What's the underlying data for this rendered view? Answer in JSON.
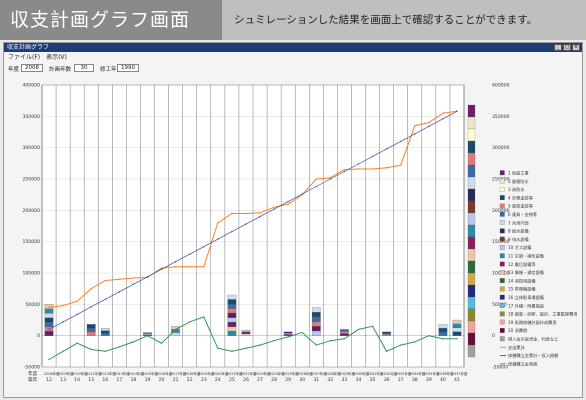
{
  "header": {
    "title": "収支計画グラフ画面",
    "caption": "シュミレーションした結果を画面上で確認することができます。"
  },
  "window": {
    "title": "収支計画グラフ",
    "menu": [
      "ファイル(F)",
      "表示(V)"
    ],
    "controls": [
      {
        "label": "年度",
        "value": "2008"
      },
      {
        "label": "計画年数",
        "value": "30"
      },
      {
        "label": "修工年",
        "value": "1990"
      }
    ]
  },
  "colors": {
    "header_dark": "#8a8a8a",
    "header_light": "#bfbfbf",
    "titlebar": "#1f3b78",
    "orange_line": "#ff7f27",
    "blue_line": "#3b4fa0",
    "green_line": "#2e9a55"
  },
  "chart_data": {
    "type": "bar",
    "ylim": [
      -50000,
      400000
    ],
    "yticks_left": [
      "400000",
      "350000",
      "300000",
      "250000",
      "200000",
      "150000",
      "100000",
      "50000",
      "0",
      "-50000"
    ],
    "yticks_right": [
      "400000",
      "350000",
      "300000",
      "250000",
      "200000",
      "150000",
      "100000",
      "50000",
      "0",
      "-50000"
    ],
    "years_label": "年度",
    "years": [
      "2008年度",
      "2009年度",
      "2010年度",
      "2011年度",
      "2012年度",
      "2013年度",
      "2014年度",
      "2015年度",
      "2016年度",
      "2017年度",
      "2018年度",
      "2019年度",
      "2020年度",
      "2021年度",
      "2022年度",
      "2023年度",
      "2024年度",
      "2025年度",
      "2026年度",
      "2027年度",
      "2028年度",
      "2029年度",
      "2030年度",
      "2031年度",
      "2032年度",
      "2033年度",
      "2034年度",
      "2035年度",
      "2036年度",
      "2037年度"
    ],
    "age_label": "築年",
    "ages": [
      "12",
      "13",
      "14",
      "15",
      "16",
      "17",
      "18",
      "19",
      "20",
      "21",
      "22",
      "23",
      "24",
      "25",
      "26",
      "27",
      "28",
      "29",
      "30",
      "31",
      "32",
      "33",
      "34",
      "35",
      "36",
      "37",
      "38",
      "39",
      "40",
      "41"
    ],
    "series": [
      {
        "name": "支出累計",
        "values": [
          45000,
          48000,
          55000,
          75000,
          88000,
          90000,
          92000,
          93000,
          108000,
          110000,
          110000,
          110000,
          180000,
          195000,
          195000,
          196000,
          205000,
          210000,
          225000,
          250000,
          252000,
          265000,
          266000,
          266000,
          268000,
          272000,
          335000,
          340000,
          355000,
          358000
        ]
      },
      {
        "name": "修繕積立金累計",
        "values": [
          10000,
          22000,
          34000,
          46000,
          58000,
          70000,
          82000,
          94000,
          106000,
          118000,
          130000,
          142000,
          154000,
          166000,
          178000,
          190000,
          202000,
          214000,
          226000,
          238000,
          250000,
          262000,
          274000,
          286000,
          298000,
          310000,
          322000,
          334000,
          346000,
          358000
        ]
      },
      {
        "name": "修繕積立金残高",
        "values": [
          -38000,
          -25000,
          -12000,
          -22000,
          -25000,
          -18000,
          -10000,
          0,
          -12000,
          10000,
          22000,
          30000,
          -20000,
          -25000,
          -20000,
          -15000,
          -8000,
          -2000,
          5000,
          -15000,
          -8000,
          -5000,
          10000,
          15000,
          -25000,
          -15000,
          -10000,
          0,
          -5000,
          -5000
        ]
      }
    ],
    "bars": [
      {
        "year": "2008年度",
        "value": 50000
      },
      {
        "year": "2011年度",
        "value": 18000
      },
      {
        "year": "2012年度",
        "value": 12000
      },
      {
        "year": "2015年度",
        "value": 5000
      },
      {
        "year": "2017年度",
        "value": 15000
      },
      {
        "year": "2021年度",
        "value": 65000
      },
      {
        "year": "2022年度",
        "value": 9000
      },
      {
        "year": "2025年度",
        "value": 6000
      },
      {
        "year": "2027年度",
        "value": 45000
      },
      {
        "year": "2029年度",
        "value": 10000
      },
      {
        "year": "2032年度",
        "value": 6000
      },
      {
        "year": "2036年度",
        "value": 18000
      },
      {
        "year": "2037年度",
        "value": 25000
      }
    ],
    "legend": [
      "1 仮設工事",
      "2 屋根防水",
      "3 床防水",
      "4 外壁塗装等",
      "5 鉄部塗装等",
      "6 建具・金物等",
      "7 共用内部",
      "8 給水設備",
      "9 排水設備",
      "10 ガス設備",
      "11 空調・換気設備",
      "12 電灯設備等",
      "13 情報・通信設備",
      "14 消防用設備",
      "15 昇降機設備",
      "16 立体駐車場設備",
      "17 外構・附属施設",
      "18 調査・診断、設計、工事監理費用",
      "19 長期修繕計画作成費用",
      "20 消費税",
      "借入金の返済金、利息など",
      "支出累計",
      "修繕積立金累計・収入総額",
      "修繕積立金残高"
    ],
    "legend_colors": [
      "#6b1f6b",
      "#e8e8c8",
      "#ffffcc",
      "#1a4a6a",
      "#e07a7a",
      "#3a6aaa",
      "#cfd8ef",
      "#2a2a5a",
      "#7a3a2a",
      "#b8c8e8",
      "#2a8aaa",
      "#8a1f5a",
      "#e8c8a8",
      "#2a6a3a",
      "#d4a84a",
      "#1f2a7a",
      "#5ab8d8",
      "#8a8a2a",
      "#f0a0a0",
      "#6a0a3a",
      "#a0a0a0",
      "#ff7f27",
      "#3b4fa0",
      "#2e9a55"
    ],
    "grid": true
  }
}
